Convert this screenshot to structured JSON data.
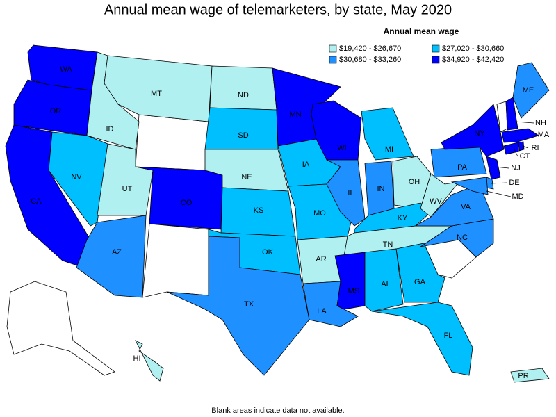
{
  "title": "Annual mean wage of telemarketers, by state, May 2020",
  "legend": {
    "title": "Annual mean wage",
    "bins": [
      {
        "label": "$19,420 - $26,670",
        "color": "#b0f0f0"
      },
      {
        "label": "$30,680 - $33,260",
        "color": "#1e90ff"
      },
      {
        "label": "$27,020 - $30,660",
        "color": "#00bfff"
      },
      {
        "label": "$34,920 - $42,420",
        "color": "#0000ff"
      }
    ]
  },
  "states": [
    {
      "label": "WA",
      "bin": 3
    },
    {
      "label": "OR",
      "bin": 3
    },
    {
      "label": "CA",
      "bin": 3
    },
    {
      "label": "ID",
      "bin": 0
    },
    {
      "label": "NV",
      "bin": 2
    },
    {
      "label": "UT",
      "bin": 0
    },
    {
      "label": "AZ",
      "bin": 1
    },
    {
      "label": "MT",
      "bin": 0
    },
    {
      "label": "CO",
      "bin": 3
    },
    {
      "label": "ND",
      "bin": 0
    },
    {
      "label": "SD",
      "bin": 2
    },
    {
      "label": "NE",
      "bin": 0
    },
    {
      "label": "KS",
      "bin": 2
    },
    {
      "label": "OK",
      "bin": 2
    },
    {
      "label": "TX",
      "bin": 1
    },
    {
      "label": "MN",
      "bin": 3
    },
    {
      "label": "IA",
      "bin": 2
    },
    {
      "label": "MO",
      "bin": 2
    },
    {
      "label": "AR",
      "bin": 0
    },
    {
      "label": "LA",
      "bin": 1
    },
    {
      "label": "WI",
      "bin": 3
    },
    {
      "label": "IL",
      "bin": 1
    },
    {
      "label": "MI",
      "bin": 2
    },
    {
      "label": "IN",
      "bin": 1
    },
    {
      "label": "OH",
      "bin": 0
    },
    {
      "label": "KY",
      "bin": 2
    },
    {
      "label": "TN",
      "bin": 0
    },
    {
      "label": "MS",
      "bin": 3
    },
    {
      "label": "AL",
      "bin": 2
    },
    {
      "label": "GA",
      "bin": 2
    },
    {
      "label": "FL",
      "bin": 2
    },
    {
      "label": "NC",
      "bin": 1
    },
    {
      "label": "VA",
      "bin": 1
    },
    {
      "label": "WV",
      "bin": 0
    },
    {
      "label": "PA",
      "bin": 1
    },
    {
      "label": "NY",
      "bin": 3
    },
    {
      "label": "NJ",
      "bin": 3
    },
    {
      "label": "DE",
      "bin": 1
    },
    {
      "label": "MD",
      "bin": 1
    },
    {
      "label": "CT",
      "bin": 3
    },
    {
      "label": "RI",
      "bin": 3
    },
    {
      "label": "MA",
      "bin": 3
    },
    {
      "label": "NH",
      "bin": 3
    },
    {
      "label": "ME",
      "bin": 1
    },
    {
      "label": "HI",
      "bin": 0
    },
    {
      "label": "PR",
      "bin": 0
    }
  ],
  "footnote": "Blank areas indicate data not available."
}
